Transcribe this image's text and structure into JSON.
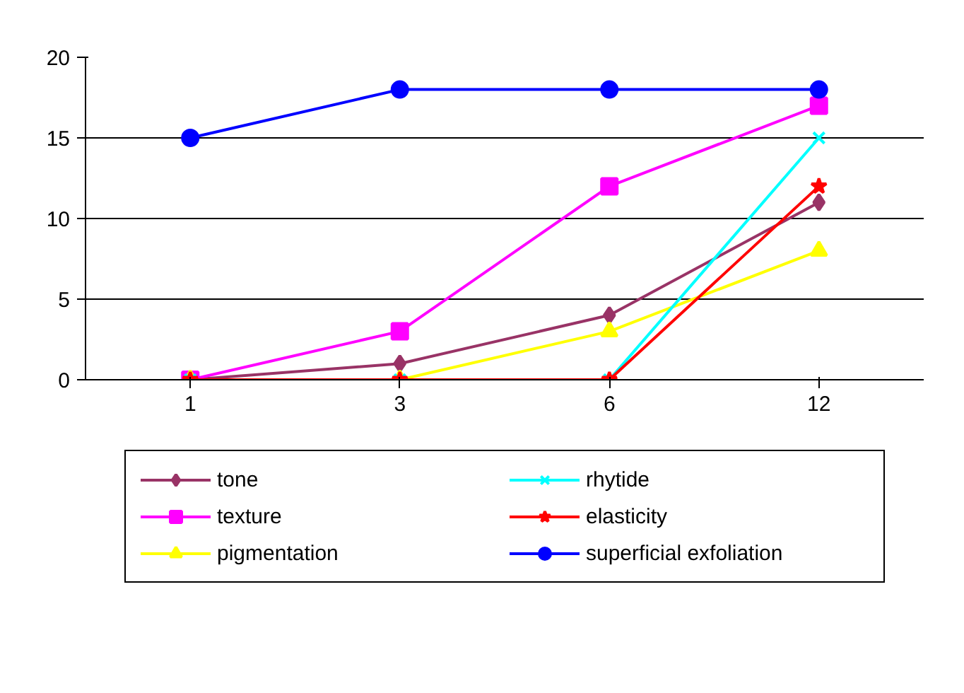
{
  "chart_data": {
    "type": "line",
    "categories": [
      "1",
      "3",
      "6",
      "12"
    ],
    "ylim": [
      0,
      20
    ],
    "yticks": [
      0,
      5,
      10,
      15,
      20
    ],
    "grid": "y",
    "legend": "bottom",
    "series": [
      {
        "name": "tone",
        "color": "#993366",
        "marker": "diamond",
        "values": [
          0,
          1,
          4,
          11
        ]
      },
      {
        "name": "texture",
        "color": "#ff00ff",
        "marker": "square",
        "values": [
          0,
          3,
          12,
          17
        ]
      },
      {
        "name": "pigmentation",
        "color": "#ffff00",
        "marker": "triangle",
        "values": [
          0,
          0,
          3,
          8
        ]
      },
      {
        "name": "rhytide",
        "color": "#00ffff",
        "marker": "cross",
        "values": [
          0,
          0,
          0,
          15
        ]
      },
      {
        "name": "elasticity",
        "color": "#ff0000",
        "marker": "star",
        "values": [
          0,
          0,
          0,
          12
        ]
      },
      {
        "name": "superficial exfoliation",
        "color": "#0000ff",
        "marker": "circle",
        "values": [
          15,
          18,
          18,
          18
        ]
      }
    ]
  }
}
